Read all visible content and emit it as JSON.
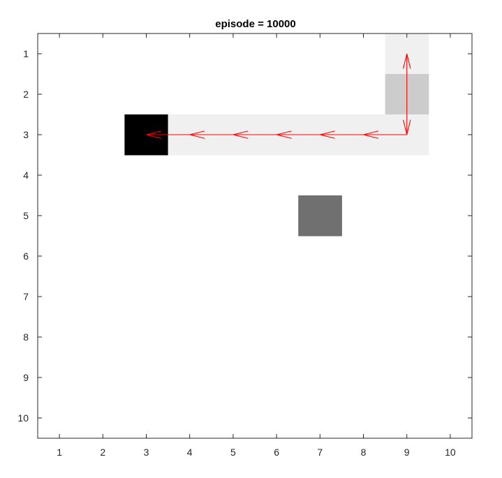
{
  "chart_data": {
    "type": "heatmap",
    "title": "episode = 10000",
    "xlabel": "",
    "ylabel": "",
    "xlim": [
      0.5,
      10.5
    ],
    "ylim": [
      0.5,
      10.5
    ],
    "y_reversed": true,
    "x_ticks": [
      1,
      2,
      3,
      4,
      5,
      6,
      7,
      8,
      9,
      10
    ],
    "y_ticks": [
      1,
      2,
      3,
      4,
      5,
      6,
      7,
      8,
      9,
      10
    ],
    "x_tick_labels": [
      "1",
      "2",
      "3",
      "4",
      "5",
      "6",
      "7",
      "8",
      "9",
      "10"
    ],
    "y_tick_labels": [
      "1",
      "2",
      "3",
      "4",
      "5",
      "6",
      "7",
      "8",
      "9",
      "10"
    ],
    "grid": false,
    "cells": [
      {
        "col": 9,
        "row": 1,
        "color": "#f0f0f0",
        "kind": "visited"
      },
      {
        "col": 9,
        "row": 2,
        "color": "#cccccc",
        "kind": "start"
      },
      {
        "col": 3,
        "row": 3,
        "color": "#000000",
        "kind": "goal"
      },
      {
        "col": 4,
        "row": 3,
        "color": "#f0f0f0",
        "kind": "visited"
      },
      {
        "col": 5,
        "row": 3,
        "color": "#f0f0f0",
        "kind": "visited"
      },
      {
        "col": 6,
        "row": 3,
        "color": "#f0f0f0",
        "kind": "visited"
      },
      {
        "col": 7,
        "row": 3,
        "color": "#f0f0f0",
        "kind": "visited"
      },
      {
        "col": 8,
        "row": 3,
        "color": "#f0f0f0",
        "kind": "visited"
      },
      {
        "col": 9,
        "row": 3,
        "color": "#f0f0f0",
        "kind": "visited"
      },
      {
        "col": 7,
        "row": 5,
        "color": "#707070",
        "kind": "obstacle"
      }
    ],
    "arrows": [
      {
        "from": [
          9,
          2
        ],
        "to": [
          9,
          1
        ]
      },
      {
        "from": [
          9,
          2
        ],
        "to": [
          9,
          3
        ]
      },
      {
        "from": [
          9,
          3
        ],
        "to": [
          8,
          3
        ]
      },
      {
        "from": [
          8,
          3
        ],
        "to": [
          7,
          3
        ]
      },
      {
        "from": [
          7,
          3
        ],
        "to": [
          6,
          3
        ]
      },
      {
        "from": [
          6,
          3
        ],
        "to": [
          5,
          3
        ]
      },
      {
        "from": [
          5,
          3
        ],
        "to": [
          4,
          3
        ]
      },
      {
        "from": [
          4,
          3
        ],
        "to": [
          3,
          3
        ]
      }
    ],
    "arrow_color": "#ff0000",
    "axis_color": "#262626"
  }
}
